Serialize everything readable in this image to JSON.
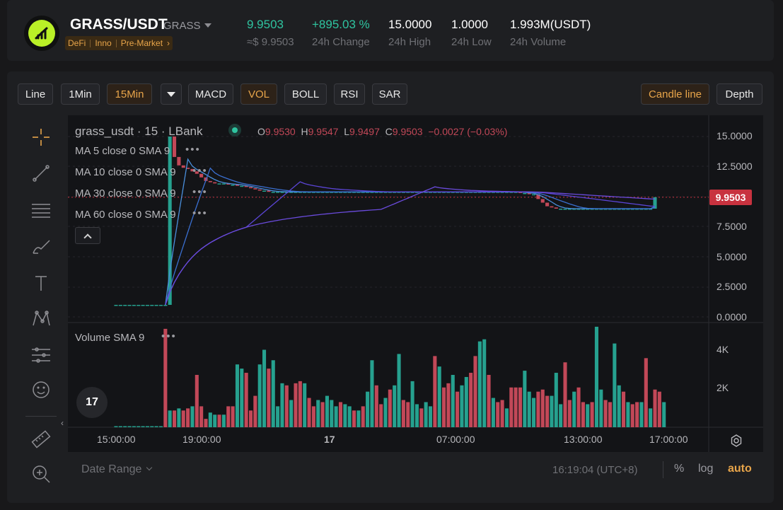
{
  "header": {
    "pair": "GRASS/USDT",
    "pair_sub": "GRASS",
    "tags": [
      "DeFi",
      "Inno",
      "Pre-Market"
    ],
    "stats": [
      {
        "value": "9.9503",
        "label": "≈$ 9.9503",
        "accent": true
      },
      {
        "value": "+895.03 %",
        "label": "24h Change",
        "accent": true
      },
      {
        "value": "15.0000",
        "label": "24h High"
      },
      {
        "value": "1.0000",
        "label": "24h Low"
      },
      {
        "value": "1.993M(USDT)",
        "label": "24h Volume"
      }
    ]
  },
  "toolbar": {
    "left": [
      "Line",
      "1Min",
      "15Min",
      "MACD",
      "VOL",
      "BOLL",
      "RSI",
      "SAR"
    ],
    "active": [
      "15Min",
      "VOL"
    ],
    "right": [
      "Candle line",
      "Depth"
    ],
    "right_active": "Candle line"
  },
  "left_tools": [
    "crosshair-icon",
    "trend-line-icon",
    "horizontal-lines-icon",
    "brush-icon",
    "text-icon",
    "pattern-icon",
    "forecast-icon",
    "emoji-icon",
    "ruler-icon",
    "zoom-in-icon"
  ],
  "chart": {
    "title": "grass_usdt · 15 · LBank",
    "ohlc": {
      "o_label": "O",
      "o": "9.9530",
      "h_label": "H",
      "h": "9.9547",
      "l_label": "L",
      "l": "9.9497",
      "c_label": "C",
      "c": "9.9503",
      "change": "−0.0027 (−0.03%)"
    },
    "ma_rows": [
      "MA 5 close 0 SMA 9",
      "MA 10 close 0 SMA 9",
      "MA 30 close 0 SMA 9",
      "MA 60 close 0 SMA 9"
    ],
    "price_axis": [
      "15.0000",
      "12.5000",
      "10.0000",
      "7.5000",
      "5.0000",
      "2.5000",
      "0.0000"
    ],
    "last_price": "9.9503",
    "volume_title": "Volume SMA 9",
    "volume_axis": [
      "4K",
      "2K"
    ],
    "time_axis": [
      "15:00:00",
      "19:00:00",
      "17",
      "07:00:00",
      "13:00:00",
      "17:00:00"
    ],
    "tv_logo": "17"
  },
  "chart_data": {
    "type": "candlestick",
    "price_range": [
      0,
      15
    ],
    "volume_range": [
      0,
      5000
    ],
    "up_color": "#26a18f",
    "down_color": "#c24858",
    "price_series": [
      1.0,
      1.0,
      1.0,
      1.0,
      1.0,
      1.0,
      1.0,
      1.0,
      1.0,
      1.0,
      1.0,
      1.0,
      15.0,
      13.3,
      12.6,
      12.4,
      12.3,
      12.1,
      11.9,
      11.6,
      11.3,
      11.2,
      11.1,
      11.1,
      11.1,
      11.0,
      11.0,
      10.9,
      10.9,
      10.8,
      10.7,
      10.6,
      10.5,
      10.5,
      10.4,
      10.4,
      10.4,
      10.4,
      10.4,
      10.4,
      10.4,
      10.4,
      10.4,
      10.4,
      10.4,
      10.4,
      10.4,
      10.4,
      10.4,
      10.4,
      10.4,
      10.4,
      10.4,
      10.4,
      10.4,
      10.4,
      10.4,
      10.4,
      10.4,
      10.4,
      10.4,
      10.4,
      10.4,
      10.4,
      10.4,
      10.4,
      10.4,
      10.4,
      10.4,
      10.4,
      10.4,
      10.4,
      10.4,
      10.4,
      10.4,
      10.4,
      10.4,
      10.4,
      10.4,
      10.4,
      10.4,
      10.4,
      10.4,
      10.4,
      10.4,
      10.4,
      10.4,
      10.4,
      10.4,
      10.4,
      10.3,
      10.3,
      10.2,
      10.2,
      9.8,
      9.5,
      9.2,
      9.1,
      9.0,
      9.0,
      9.0,
      9.0,
      9.0,
      9.0,
      9.0,
      9.0,
      9.0,
      9.0,
      9.0,
      9.0,
      9.0,
      9.0,
      9.0,
      9.0,
      9.0,
      9.0,
      9.0,
      9.0,
      9.0,
      9.0,
      9.9503
    ],
    "volume_series": [
      50,
      50,
      50,
      50,
      50,
      50,
      50,
      50,
      50,
      50,
      50,
      4700,
      800,
      800,
      900,
      800,
      900,
      1000,
      2500,
      1000,
      400,
      700,
      600,
      600,
      600,
      1000,
      1000,
      3000,
      2800,
      2600,
      800,
      1500,
      3000,
      3700,
      2800,
      3200,
      1000,
      2100,
      2000,
      1300,
      2100,
      2200,
      2100,
      1400,
      1000,
      1300,
      1200,
      1500,
      1300,
      1000,
      1200,
      1100,
      1000,
      800,
      800,
      1000,
      1700,
      3200,
      2000,
      1100,
      1400,
      1800,
      2000,
      3500,
      1300,
      1200,
      2200,
      1100,
      900,
      1200,
      1000,
      3400,
      2900,
      1900,
      2100,
      2500,
      1700,
      2000,
      2400,
      2600,
      3400,
      4100,
      4200,
      2500,
      1400,
      1200,
      1300,
      900,
      1900,
      1900,
      1900,
      2700,
      1700,
      1400,
      1700,
      1800,
      1500,
      1500,
      2600,
      1100,
      3100,
      1300,
      1700,
      1900,
      1200,
      1100,
      1200,
      4800,
      1800,
      1300,
      1200,
      4000,
      2000,
      1700,
      1200,
      1100,
      1200,
      1200,
      3300,
      900,
      1800,
      1700,
      1200
    ],
    "ma_series_colors": [
      "#4a8fdc",
      "#3a6fd0",
      "#5b45d6",
      "#6a4bdc"
    ]
  },
  "footer": {
    "date_range": "Date Range",
    "clock": "16:19:04 (UTC+8)",
    "pct": "%",
    "log": "log",
    "auto": "auto"
  }
}
